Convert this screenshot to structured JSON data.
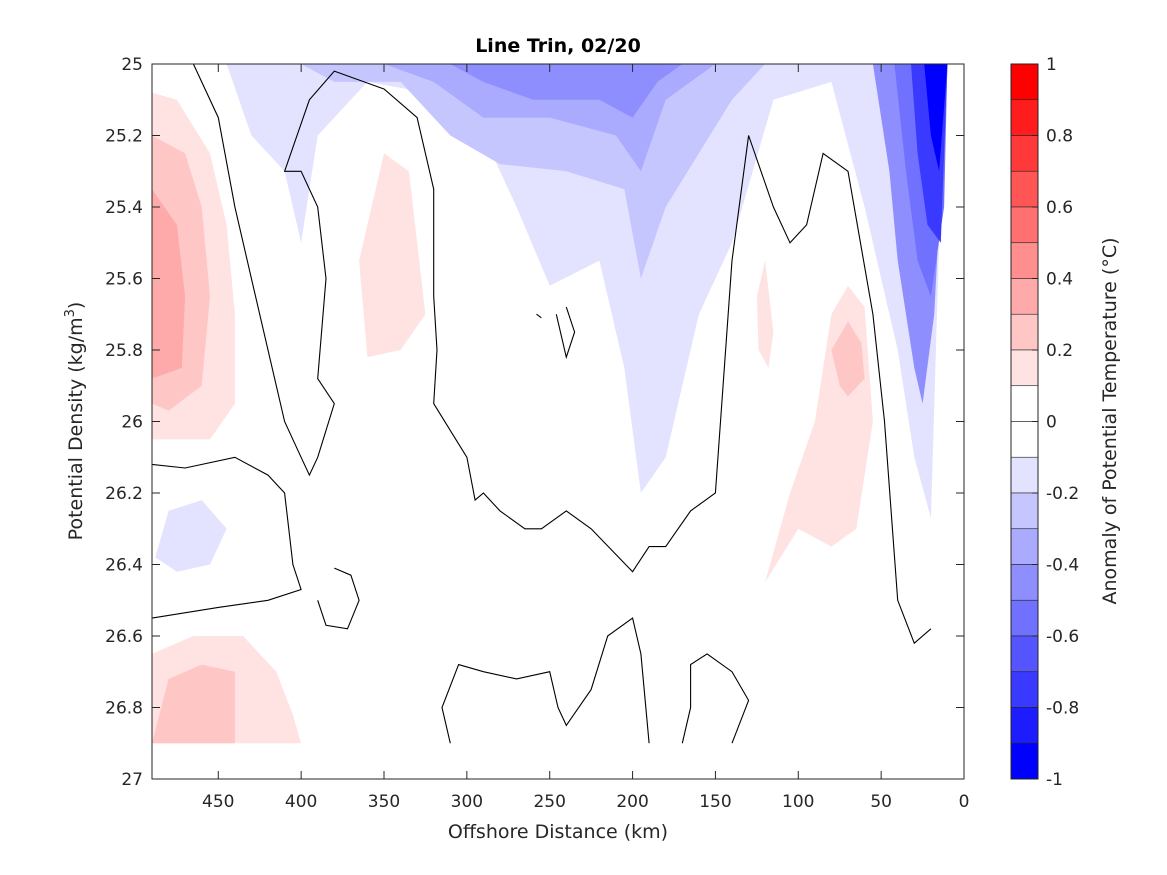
{
  "chart_data": {
    "type": "heatmap",
    "title": "Line Trin, 02/20",
    "xlabel": "Offshore Distance (km)",
    "ylabel": "Potential Density (kg/m",
    "ylabel_sup": "3",
    "ylabel_end": ")",
    "colorbar_label": "Anomaly of Potential Temperature (°C)",
    "xlim": [
      490,
      0
    ],
    "ylim": [
      25,
      27
    ],
    "x_reversed": true,
    "y_reversed": true,
    "xticks": [
      450,
      400,
      350,
      300,
      250,
      200,
      150,
      100,
      50,
      0
    ],
    "xtick_labels": [
      "450",
      "400",
      "350",
      "300",
      "250",
      "200",
      "150",
      "100",
      "50",
      "0"
    ],
    "yticks": [
      25,
      25.2,
      25.4,
      25.6,
      25.8,
      26,
      26.2,
      26.4,
      26.6,
      26.8,
      27
    ],
    "ytick_labels": [
      "25",
      "25.2",
      "25.4",
      "25.6",
      "25.8",
      "26",
      "26.2",
      "26.4",
      "26.6",
      "26.8",
      "27"
    ],
    "colorbar": {
      "range": [
        -1,
        1
      ],
      "ticks": [
        1,
        0.8,
        0.6,
        0.4,
        0.2,
        0,
        -0.2,
        -0.4,
        -0.6,
        -0.8,
        -1
      ],
      "tick_labels": [
        "1",
        "0.8",
        "0.6",
        "0.4",
        "0.2",
        "0",
        "-0.2",
        "-0.4",
        "-0.6",
        "-0.8",
        "-1"
      ],
      "levels": [
        {
          "lo": 0.9,
          "hi": 1.0,
          "color": "#ff0000"
        },
        {
          "lo": 0.8,
          "hi": 0.9,
          "color": "#ff1c1c"
        },
        {
          "lo": 0.7,
          "hi": 0.8,
          "color": "#ff3939"
        },
        {
          "lo": 0.6,
          "hi": 0.7,
          "color": "#ff5555"
        },
        {
          "lo": 0.5,
          "hi": 0.6,
          "color": "#ff7171"
        },
        {
          "lo": 0.4,
          "hi": 0.5,
          "color": "#ff8e8e"
        },
        {
          "lo": 0.3,
          "hi": 0.4,
          "color": "#ffaaaa"
        },
        {
          "lo": 0.2,
          "hi": 0.3,
          "color": "#ffc6c6"
        },
        {
          "lo": 0.1,
          "hi": 0.2,
          "color": "#ffe3e3"
        },
        {
          "lo": 0.0,
          "hi": 0.1,
          "color": "#ffffff"
        },
        {
          "lo": -0.1,
          "hi": 0.0,
          "color": "#ffffff"
        },
        {
          "lo": -0.2,
          "hi": -0.1,
          "color": "#e3e3ff"
        },
        {
          "lo": -0.3,
          "hi": -0.2,
          "color": "#c6c6ff"
        },
        {
          "lo": -0.4,
          "hi": -0.3,
          "color": "#aaaaff"
        },
        {
          "lo": -0.5,
          "hi": -0.4,
          "color": "#8e8eff"
        },
        {
          "lo": -0.6,
          "hi": -0.5,
          "color": "#7171ff"
        },
        {
          "lo": -0.7,
          "hi": -0.6,
          "color": "#5555ff"
        },
        {
          "lo": -0.8,
          "hi": -0.7,
          "color": "#3939ff"
        },
        {
          "lo": -0.9,
          "hi": -0.8,
          "color": "#1c1cff"
        },
        {
          "lo": -1.0,
          "hi": -0.9,
          "color": "#0000ff"
        }
      ]
    },
    "fields": [
      {
        "name": "blue-top",
        "value": -0.15,
        "points": [
          [
            445,
            25.0
          ],
          [
            430,
            25.2
          ],
          [
            410,
            25.3
          ],
          [
            400,
            25.5
          ],
          [
            390,
            25.2
          ],
          [
            360,
            25.05
          ],
          [
            300,
            25.1
          ],
          [
            270,
            25.4
          ],
          [
            250,
            25.62
          ],
          [
            220,
            25.55
          ],
          [
            205,
            25.85
          ],
          [
            195,
            26.2
          ],
          [
            180,
            26.1
          ],
          [
            160,
            25.7
          ],
          [
            140,
            25.5
          ],
          [
            115,
            25.1
          ],
          [
            80,
            25.05
          ],
          [
            60,
            25.4
          ],
          [
            40,
            25.8
          ],
          [
            30,
            26.1
          ],
          [
            20,
            26.27
          ],
          [
            15,
            25.5
          ],
          [
            10,
            25.0
          ]
        ]
      },
      {
        "name": "blue-top-2",
        "value": -0.25,
        "points": [
          [
            400,
            25.0
          ],
          [
            380,
            25.05
          ],
          [
            340,
            25.05
          ],
          [
            310,
            25.2
          ],
          [
            280,
            25.28
          ],
          [
            240,
            25.3
          ],
          [
            205,
            25.35
          ],
          [
            195,
            25.6
          ],
          [
            180,
            25.4
          ],
          [
            140,
            25.1
          ],
          [
            120,
            25.0
          ]
        ]
      },
      {
        "name": "blue-top-3",
        "value": -0.35,
        "points": [
          [
            350,
            25.0
          ],
          [
            320,
            25.05
          ],
          [
            290,
            25.15
          ],
          [
            250,
            25.15
          ],
          [
            210,
            25.2
          ],
          [
            195,
            25.3
          ],
          [
            180,
            25.1
          ],
          [
            150,
            25.0
          ]
        ]
      },
      {
        "name": "blue-top-4",
        "value": -0.45,
        "points": [
          [
            310,
            25.0
          ],
          [
            290,
            25.05
          ],
          [
            260,
            25.1
          ],
          [
            220,
            25.1
          ],
          [
            200,
            25.15
          ],
          [
            185,
            25.05
          ],
          [
            170,
            25.0
          ]
        ]
      },
      {
        "name": "blue-east-1",
        "value": -0.45,
        "points": [
          [
            55,
            25.0
          ],
          [
            45,
            25.3
          ],
          [
            40,
            25.55
          ],
          [
            30,
            25.85
          ],
          [
            25,
            25.95
          ],
          [
            18,
            25.7
          ],
          [
            10,
            25.0
          ]
        ]
      },
      {
        "name": "blue-east-2",
        "value": -0.55,
        "points": [
          [
            42,
            25.0
          ],
          [
            35,
            25.3
          ],
          [
            28,
            25.55
          ],
          [
            20,
            25.65
          ],
          [
            12,
            25.4
          ],
          [
            10,
            25.0
          ]
        ]
      },
      {
        "name": "blue-east-3",
        "value": -0.75,
        "points": [
          [
            32,
            25.0
          ],
          [
            28,
            25.25
          ],
          [
            22,
            25.45
          ],
          [
            14,
            25.5
          ],
          [
            10,
            25.0
          ]
        ]
      },
      {
        "name": "blue-east-4",
        "value": -0.95,
        "points": [
          [
            24,
            25.0
          ],
          [
            20,
            25.2
          ],
          [
            15,
            25.3
          ],
          [
            10,
            25.0
          ]
        ]
      },
      {
        "name": "blue-west-blob",
        "value": -0.15,
        "points": [
          [
            480,
            26.25
          ],
          [
            460,
            26.22
          ],
          [
            445,
            26.3
          ],
          [
            455,
            26.4
          ],
          [
            475,
            26.42
          ],
          [
            488,
            26.38
          ]
        ]
      },
      {
        "name": "pink-west-1",
        "value": 0.15,
        "points": [
          [
            490,
            25.08
          ],
          [
            475,
            25.1
          ],
          [
            455,
            25.25
          ],
          [
            445,
            25.45
          ],
          [
            440,
            25.7
          ],
          [
            440,
            25.95
          ],
          [
            455,
            26.05
          ],
          [
            475,
            26.05
          ],
          [
            490,
            26.05
          ]
        ]
      },
      {
        "name": "pink-west-2",
        "value": 0.25,
        "points": [
          [
            490,
            25.2
          ],
          [
            470,
            25.25
          ],
          [
            460,
            25.4
          ],
          [
            455,
            25.65
          ],
          [
            460,
            25.9
          ],
          [
            480,
            25.97
          ],
          [
            490,
            25.95
          ]
        ]
      },
      {
        "name": "pink-west-3",
        "value": 0.35,
        "points": [
          [
            490,
            25.35
          ],
          [
            475,
            25.45
          ],
          [
            470,
            25.65
          ],
          [
            472,
            25.85
          ],
          [
            490,
            25.88
          ]
        ]
      },
      {
        "name": "pink-mid",
        "value": 0.15,
        "points": [
          [
            365,
            25.55
          ],
          [
            350,
            25.25
          ],
          [
            335,
            25.3
          ],
          [
            325,
            25.7
          ],
          [
            340,
            25.8
          ],
          [
            360,
            25.82
          ]
        ]
      },
      {
        "name": "pink-east",
        "value": 0.15,
        "points": [
          [
            120,
            26.45
          ],
          [
            105,
            26.2
          ],
          [
            90,
            26.0
          ],
          [
            80,
            25.7
          ],
          [
            70,
            25.62
          ],
          [
            60,
            25.68
          ],
          [
            55,
            26.0
          ],
          [
            65,
            26.3
          ],
          [
            80,
            26.35
          ],
          [
            100,
            26.3
          ]
        ]
      },
      {
        "name": "pink-east-2",
        "value": 0.25,
        "points": [
          [
            80,
            25.8
          ],
          [
            75,
            25.9
          ],
          [
            70,
            25.93
          ],
          [
            60,
            25.88
          ],
          [
            62,
            25.78
          ],
          [
            70,
            25.72
          ]
        ]
      },
      {
        "name": "pink-east-slim",
        "value": 0.15,
        "points": [
          [
            125,
            25.65
          ],
          [
            120,
            25.55
          ],
          [
            115,
            25.75
          ],
          [
            118,
            25.85
          ],
          [
            124,
            25.8
          ]
        ]
      },
      {
        "name": "pink-bottom-1",
        "value": 0.15,
        "points": [
          [
            490,
            26.65
          ],
          [
            465,
            26.6
          ],
          [
            435,
            26.6
          ],
          [
            415,
            26.7
          ],
          [
            405,
            26.82
          ],
          [
            400,
            26.9
          ],
          [
            490,
            26.9
          ]
        ]
      },
      {
        "name": "pink-bottom-2",
        "value": 0.25,
        "points": [
          [
            480,
            26.72
          ],
          [
            460,
            26.68
          ],
          [
            440,
            26.7
          ],
          [
            440,
            26.9
          ],
          [
            490,
            26.9
          ]
        ]
      }
    ],
    "contours": [
      {
        "points": [
          [
            465,
            25.0
          ],
          [
            450,
            25.15
          ],
          [
            440,
            25.4
          ],
          [
            430,
            25.6
          ],
          [
            420,
            25.8
          ],
          [
            410,
            26.0
          ],
          [
            400,
            26.1
          ],
          [
            395,
            26.15
          ],
          [
            390,
            26.1
          ],
          [
            380,
            25.95
          ],
          [
            390,
            25.88
          ],
          [
            385,
            25.6
          ],
          [
            390,
            25.4
          ],
          [
            400,
            25.3
          ],
          [
            410,
            25.3
          ],
          [
            395,
            25.1
          ],
          [
            380,
            25.02
          ],
          [
            350,
            25.07
          ],
          [
            330,
            25.15
          ],
          [
            320,
            25.35
          ],
          [
            320,
            25.65
          ],
          [
            318,
            25.8
          ],
          [
            320,
            25.95
          ],
          [
            300,
            26.1
          ],
          [
            295,
            26.22
          ],
          [
            290,
            26.2
          ],
          [
            280,
            26.25
          ],
          [
            265,
            26.3
          ],
          [
            255,
            26.3
          ],
          [
            240,
            26.25
          ],
          [
            225,
            26.3
          ],
          [
            200,
            26.42
          ],
          [
            190,
            26.35
          ],
          [
            180,
            26.35
          ],
          [
            165,
            26.25
          ],
          [
            150,
            26.2
          ],
          [
            140,
            25.55
          ],
          [
            130,
            25.2
          ],
          [
            115,
            25.4
          ],
          [
            105,
            25.5
          ],
          [
            95,
            25.45
          ],
          [
            85,
            25.25
          ],
          [
            70,
            25.3
          ],
          [
            55,
            25.7
          ],
          [
            48,
            26.0
          ],
          [
            40,
            26.5
          ],
          [
            30,
            26.62
          ],
          [
            20,
            26.58
          ]
        ]
      },
      {
        "points": [
          [
            490,
            26.12
          ],
          [
            470,
            26.13
          ],
          [
            440,
            26.1
          ],
          [
            420,
            26.15
          ],
          [
            410,
            26.2
          ],
          [
            405,
            26.4
          ],
          [
            400,
            26.47
          ],
          [
            420,
            26.5
          ],
          [
            450,
            26.52
          ],
          [
            490,
            26.55
          ]
        ]
      },
      {
        "points": [
          [
            240,
            25.68
          ],
          [
            235,
            25.75
          ],
          [
            240,
            25.82
          ],
          [
            246,
            25.7
          ]
        ]
      },
      {
        "points": [
          [
            258,
            25.7
          ],
          [
            255,
            25.71
          ]
        ]
      },
      {
        "points": [
          [
            380,
            26.41
          ],
          [
            370,
            26.43
          ],
          [
            365,
            26.5
          ],
          [
            372,
            26.58
          ],
          [
            385,
            26.57
          ],
          [
            390,
            26.5
          ]
        ]
      },
      {
        "points": [
          [
            310,
            26.9
          ],
          [
            315,
            26.8
          ],
          [
            305,
            26.68
          ],
          [
            290,
            26.7
          ],
          [
            270,
            26.72
          ],
          [
            250,
            26.7
          ],
          [
            245,
            26.8
          ],
          [
            240,
            26.85
          ],
          [
            225,
            26.75
          ],
          [
            215,
            26.6
          ],
          [
            200,
            26.55
          ],
          [
            195,
            26.65
          ],
          [
            190,
            26.9
          ]
        ]
      },
      {
        "points": [
          [
            170,
            26.9
          ],
          [
            165,
            26.8
          ],
          [
            165,
            26.68
          ],
          [
            155,
            26.65
          ],
          [
            140,
            26.7
          ],
          [
            130,
            26.78
          ],
          [
            140,
            26.9
          ]
        ]
      }
    ]
  }
}
